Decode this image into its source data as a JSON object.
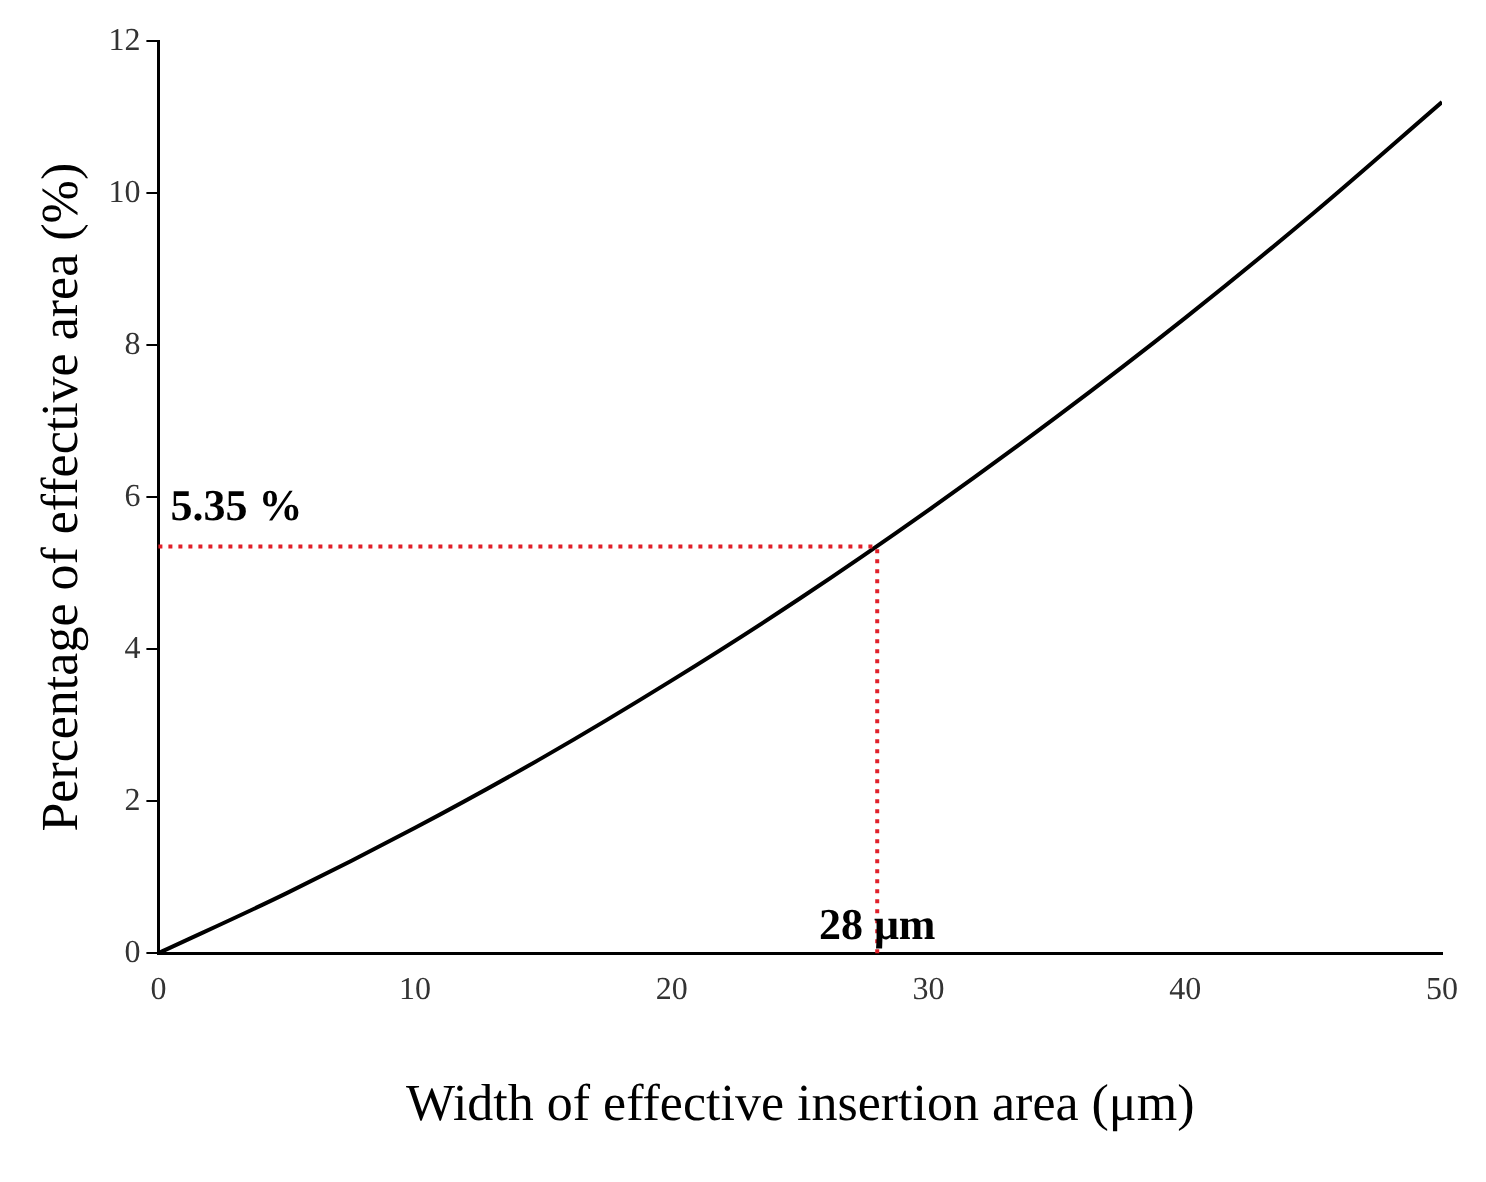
{
  "chart_data": {
    "type": "line",
    "xlabel": "Width of effective insertion area (μm)",
    "ylabel": "Percentage of effective area (%)",
    "x": [
      0,
      5,
      10,
      15,
      20,
      25,
      30,
      35,
      40,
      45,
      50
    ],
    "series": [
      {
        "color": "#000000",
        "values": [
          0,
          0.79,
          1.65,
          2.58,
          3.59,
          4.67,
          5.83,
          7.06,
          8.36,
          9.74,
          11.2
        ]
      }
    ],
    "xlim": [
      0,
      50
    ],
    "xticks": [
      0,
      10,
      20,
      30,
      40,
      50
    ],
    "ylim": [
      0,
      12
    ],
    "yticks": [
      0,
      2,
      4,
      6,
      8,
      10,
      12
    ],
    "ref_lines": [
      {
        "axis": "y",
        "value": 5.35,
        "label": "5.35 %",
        "color": "#e0202a",
        "line_style": "dotted"
      },
      {
        "axis": "x",
        "value": 28,
        "label": "28 μm",
        "color": "#e0202a",
        "line_style": "dotted"
      }
    ],
    "grid": false,
    "legend": false,
    "marker": "none",
    "line_style": "solid"
  }
}
